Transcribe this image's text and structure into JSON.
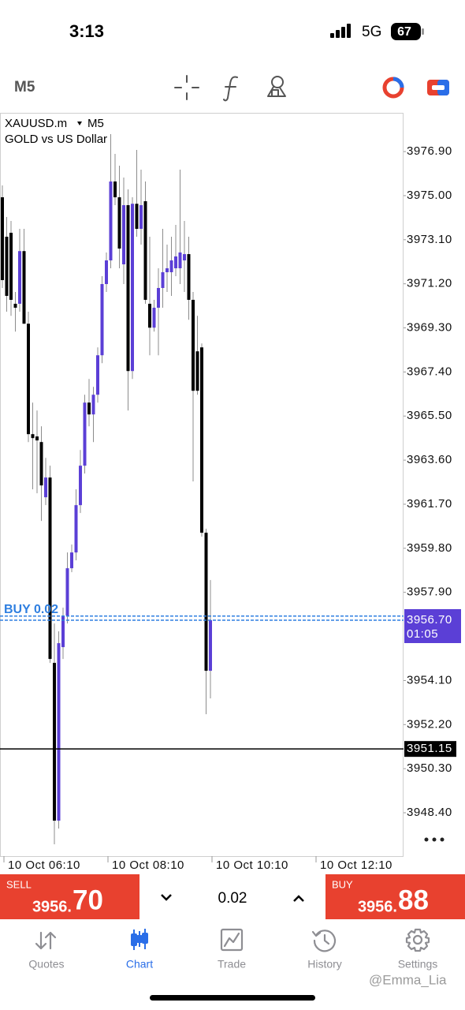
{
  "status_bar": {
    "time": "3:13",
    "network": "5G",
    "battery": "67"
  },
  "toolbar": {
    "timeframe": "M5"
  },
  "chart_data": {
    "type": "candlestick",
    "title": "XAUUSD.m",
    "timeframe": "M5",
    "subtitle": "GOLD vs US Dollar",
    "x": [
      "10 Oct 06:10",
      "10 Oct 06:15",
      "10 Oct 06:20",
      "10 Oct 06:25",
      "10 Oct 06:30",
      "10 Oct 06:35",
      "10 Oct 06:40",
      "10 Oct 06:45",
      "10 Oct 06:50",
      "10 Oct 06:55",
      "10 Oct 07:00",
      "10 Oct 07:05",
      "10 Oct 07:10",
      "10 Oct 07:15",
      "10 Oct 07:20",
      "10 Oct 07:25",
      "10 Oct 07:30",
      "10 Oct 07:35",
      "10 Oct 07:40",
      "10 Oct 07:45",
      "10 Oct 07:50",
      "10 Oct 07:55",
      "10 Oct 08:00",
      "10 Oct 08:05",
      "10 Oct 08:10",
      "10 Oct 08:15",
      "10 Oct 08:20",
      "10 Oct 08:25",
      "10 Oct 08:30",
      "10 Oct 08:35",
      "10 Oct 08:40",
      "10 Oct 08:45",
      "10 Oct 08:50",
      "10 Oct 08:55",
      "10 Oct 09:00",
      "10 Oct 09:05",
      "10 Oct 09:10",
      "10 Oct 09:15",
      "10 Oct 09:20",
      "10 Oct 09:25",
      "10 Oct 09:30",
      "10 Oct 09:35",
      "10 Oct 09:40",
      "10 Oct 09:45",
      "10 Oct 09:50",
      "10 Oct 09:55",
      "10 Oct 10:00",
      "10 Oct 10:05",
      "10 Oct 10:10"
    ],
    "open": [
      3974.93,
      3973.23,
      3973.4,
      3970.34,
      3970.34,
      3972.61,
      3969.48,
      3964.72,
      3964.62,
      3964.38,
      3962.0,
      3962.85,
      3954.86,
      3948.06,
      3955.54,
      3956.9,
      3958.94,
      3959.62,
      3961.66,
      3963.36,
      3966.08,
      3965.57,
      3966.42,
      3968.12,
      3971.19,
      3972.21,
      3975.61,
      3974.93,
      3972.04,
      3974.59,
      3967.44,
      3974.65,
      3973.57,
      3974.76,
      3970.34,
      3969.31,
      3970.17,
      3971.02,
      3971.7,
      3971.7,
      3971.87,
      3971.87,
      3972.21,
      3972.48,
      3970.51,
      3968.29,
      3968.46,
      3960.47,
      3954.52
    ],
    "high": [
      3975.44,
      3974.08,
      3973.91,
      3970.85,
      3973.57,
      3973.57,
      3970.0,
      3966.08,
      3965.74,
      3965.06,
      3963.7,
      3963.36,
      3956.56,
      3956.22,
      3957.24,
      3959.62,
      3959.96,
      3962.34,
      3964.04,
      3966.42,
      3967.1,
      3966.76,
      3968.46,
      3971.53,
      3972.55,
      3977.65,
      3976.8,
      3976.29,
      3975.78,
      3975.27,
      3974.93,
      3976.97,
      3976.12,
      3975.61,
      3973.23,
      3970.51,
      3971.87,
      3973.57,
      3972.89,
      3973.23,
      3973.74,
      3976.12,
      3973.91,
      3973.23,
      3970.85,
      3969.82,
      3968.63,
      3960.64,
      3958.43
    ],
    "low": [
      3971.02,
      3970.0,
      3969.82,
      3969.14,
      3970.0,
      3969.48,
      3964.38,
      3962.34,
      3962.17,
      3960.98,
      3961.66,
      3954.86,
      3947.04,
      3947.72,
      3955.03,
      3956.56,
      3958.77,
      3959.28,
      3961.32,
      3963.02,
      3965.06,
      3964.38,
      3966.08,
      3967.78,
      3970.85,
      3971.87,
      3974.59,
      3971.87,
      3971.19,
      3965.74,
      3967.1,
      3973.23,
      3972.89,
      3970.34,
      3968.12,
      3969.14,
      3968.12,
      3970.17,
      3970.85,
      3970.68,
      3971.53,
      3971.19,
      3970.85,
      3969.65,
      3962.68,
      3966.42,
      3960.3,
      3952.65,
      3953.33
    ],
    "close": [
      3971.36,
      3970.68,
      3970.51,
      3970.17,
      3972.61,
      3969.48,
      3964.72,
      3964.55,
      3964.45,
      3962.51,
      3962.85,
      3955.03,
      3948.06,
      3955.71,
      3956.9,
      3958.94,
      3959.62,
      3961.66,
      3963.36,
      3966.08,
      3965.57,
      3966.42,
      3968.12,
      3971.19,
      3972.21,
      3975.61,
      3974.93,
      3972.72,
      3974.59,
      3967.44,
      3974.65,
      3973.57,
      3974.59,
      3970.51,
      3969.31,
      3970.17,
      3971.02,
      3971.7,
      3971.87,
      3972.21,
      3972.38,
      3972.55,
      3972.48,
      3970.51,
      3966.59,
      3966.59,
      3960.47,
      3954.52,
      3956.7
    ],
    "ylim": [
      3946.53,
      3978.57
    ],
    "yticks": [
      {
        "value": 3976.9,
        "label": "3976.90"
      },
      {
        "value": 3975,
        "label": "3975.00"
      },
      {
        "value": 3973.1,
        "label": "3973.10"
      },
      {
        "value": 3971.2,
        "label": "3971.20"
      },
      {
        "value": 3969.3,
        "label": "3969.30"
      },
      {
        "value": 3967.4,
        "label": "3967.40"
      },
      {
        "value": 3965.5,
        "label": "3965.50"
      },
      {
        "value": 3963.6,
        "label": "3963.60"
      },
      {
        "value": 3961.7,
        "label": "3961.70"
      },
      {
        "value": 3959.8,
        "label": "3959.80"
      },
      {
        "value": 3957.9,
        "label": "3957.90"
      },
      {
        "value": 3954.1,
        "label": "3954.10"
      },
      {
        "value": 3952.2,
        "label": "3952.20"
      },
      {
        "value": 3950.3,
        "label": "3950.30"
      },
      {
        "value": 3948.4,
        "label": "3948.40"
      }
    ],
    "xticks": [
      "10 Oct 06:10",
      "10 Oct 08:10",
      "10 Oct 10:10",
      "10 Oct 12:10"
    ],
    "grid": false,
    "up_color": "#5b3fd6",
    "down_color": "#000000",
    "wick_color": "#8c8c8c",
    "current_price": {
      "value": 3956.7,
      "label": "3956.70",
      "countdown": "01:05",
      "color": "#5b3fd6"
    },
    "position": {
      "label": "BUY 0.02",
      "value": 3956.88,
      "color": "#2f7fe0"
    },
    "level": {
      "value": 3951.15,
      "label": "3951.15"
    }
  },
  "trade_panel": {
    "sell": {
      "label": "SELL",
      "price_head": "3956.",
      "price_tail": "70"
    },
    "volume": "0.02",
    "buy": {
      "label": "BUY",
      "price_head": "3956.",
      "price_tail": "88"
    }
  },
  "tabs": [
    "Quotes",
    "Chart",
    "Trade",
    "History",
    "Settings"
  ],
  "watermark": "@Emma_Lia"
}
